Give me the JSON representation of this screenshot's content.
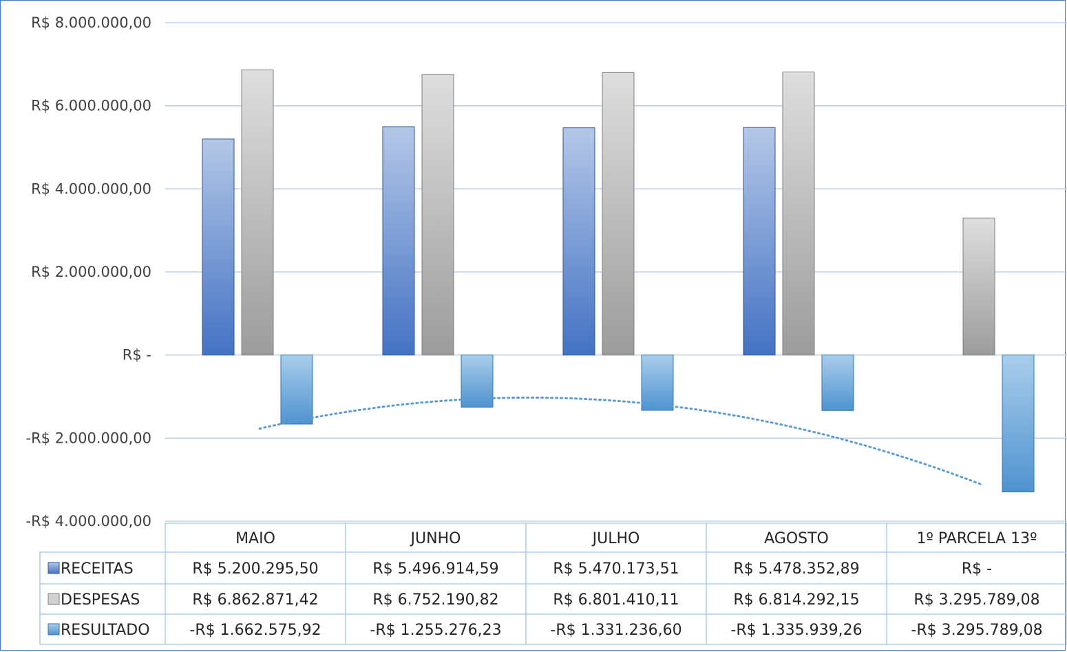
{
  "chart_data": {
    "type": "bar",
    "categories": [
      "MAIO",
      "JUNHO",
      "JULHO",
      "AGOSTO",
      "1º PARCELA 13º"
    ],
    "series": [
      {
        "name": "RECEITAS",
        "values": [
          5200295.5,
          5496914.59,
          5470173.51,
          5478352.89,
          0
        ],
        "labels": [
          "R$ 5.200.295,50",
          "R$ 5.496.914,59",
          "R$ 5.470.173,51",
          "R$ 5.478.352,89",
          "R$ -"
        ]
      },
      {
        "name": "DESPESAS",
        "values": [
          6862871.42,
          6752190.82,
          6801410.11,
          6814292.15,
          3295789.08
        ],
        "labels": [
          "R$ 6.862.871,42",
          "R$ 6.752.190,82",
          "R$ 6.801.410,11",
          "R$ 6.814.292,15",
          "R$ 3.295.789,08"
        ]
      },
      {
        "name": "RESULTADO",
        "values": [
          -1662575.92,
          -1255276.23,
          -1331236.6,
          -1335939.26,
          -3295789.08
        ],
        "labels": [
          "-R$ 1.662.575,92",
          "-R$ 1.255.276,23",
          "-R$ 1.331.236,60",
          "-R$ 1.335.939,26",
          "-R$ 3.295.789,08"
        ]
      }
    ],
    "trendline": {
      "series": "RESULTADO",
      "kind": "polynomial",
      "style": "dotted"
    },
    "ylim": [
      -4000000,
      8000000
    ],
    "yticks": [
      8000000,
      6000000,
      4000000,
      2000000,
      0,
      -2000000,
      -4000000
    ],
    "ytick_labels": [
      "R$ 8.000.000,00",
      "R$ 6.000.000,00",
      "R$ 4.000.000,00",
      "R$ 2.000.000,00",
      "R$ -",
      "-R$ 2.000.000,00",
      "-R$ 4.000.000,00"
    ],
    "grid": true,
    "legend": "data-table",
    "colors": {
      "RECEITAS": "#4472c4",
      "DESPESAS": "#a5a5a5",
      "RESULTADO": "#5b9bd5"
    }
  }
}
